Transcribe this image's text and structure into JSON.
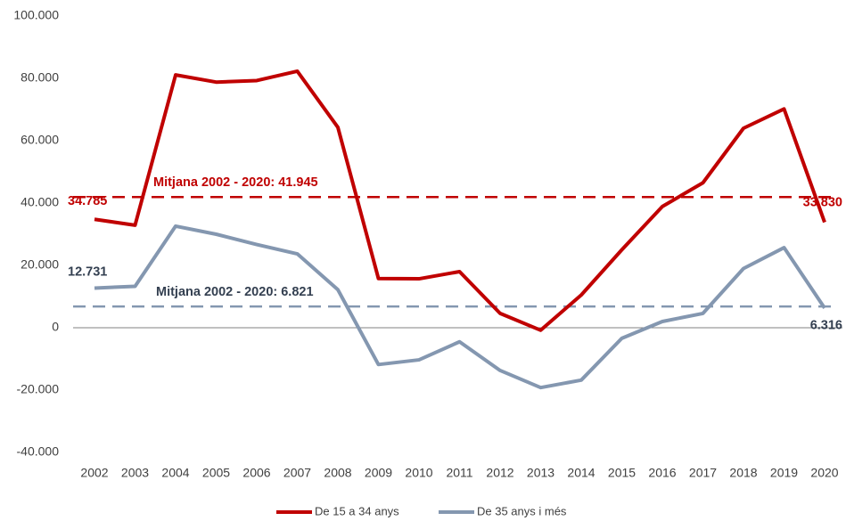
{
  "chart_data": {
    "type": "line",
    "categories": [
      "2002",
      "2003",
      "2004",
      "2005",
      "2006",
      "2007",
      "2008",
      "2009",
      "2010",
      "2011",
      "2012",
      "2013",
      "2014",
      "2015",
      "2016",
      "2017",
      "2018",
      "2019",
      "2020"
    ],
    "series": [
      {
        "name": "De 15 a 34 anys",
        "color": "#c00000",
        "values": [
          34785,
          32900,
          81100,
          78800,
          79300,
          82300,
          64300,
          15800,
          15700,
          18000,
          4600,
          -800,
          10500,
          25000,
          38900,
          46500,
          64000,
          70200,
          33830
        ],
        "value_labels": [
          "34.785",
          null,
          null,
          null,
          null,
          null,
          null,
          null,
          null,
          null,
          null,
          null,
          null,
          null,
          null,
          null,
          null,
          null,
          "33.830"
        ]
      },
      {
        "name": "De 35 anys i més",
        "color": "#8497b0",
        "values": [
          12731,
          13300,
          32600,
          30000,
          26700,
          23700,
          12200,
          -11800,
          -10300,
          -4500,
          -13700,
          -19200,
          -16800,
          -3400,
          2000,
          4600,
          19000,
          25700,
          6316
        ],
        "value_labels": [
          "12.731",
          null,
          null,
          null,
          null,
          null,
          null,
          null,
          null,
          null,
          null,
          null,
          null,
          null,
          null,
          null,
          null,
          null,
          "6.316"
        ]
      }
    ],
    "mean_lines": [
      {
        "value": 41945,
        "label": "Mitjana 2002 - 2020: 41.945",
        "color": "#c00000"
      },
      {
        "value": 6821,
        "label": "Mitjana 2002 - 2020: 6.821",
        "color": "#8497b0"
      }
    ],
    "ylim": [
      -40000,
      100000
    ],
    "yticks": [
      {
        "value": -40000,
        "label": "-40.000"
      },
      {
        "value": -20000,
        "label": "-20.000"
      },
      0,
      {
        "value": 20000,
        "label": "20.000"
      },
      {
        "value": 40000,
        "label": "40.000"
      },
      {
        "value": 60000,
        "label": "60.000"
      },
      {
        "value": 80000,
        "label": "80.000"
      },
      {
        "value": 100000,
        "label": "100.000"
      }
    ],
    "grid": false,
    "legend": "bottom"
  }
}
